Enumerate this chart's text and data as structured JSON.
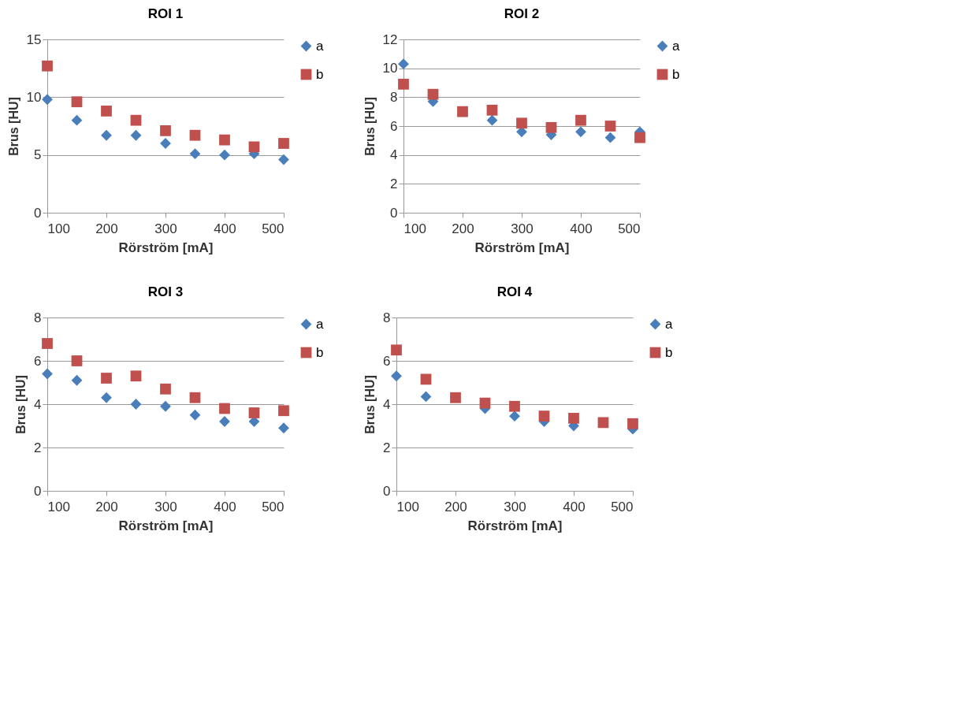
{
  "chart_data": [
    {
      "type": "scatter",
      "title": "ROI 1",
      "xlabel": "Rörström [mA]",
      "ylabel": "Brus [HU]",
      "x": [
        100,
        150,
        200,
        250,
        300,
        350,
        400,
        450,
        500
      ],
      "xlim": [
        100,
        500
      ],
      "xticks": [
        100,
        200,
        300,
        400,
        500
      ],
      "ylim": [
        0,
        15
      ],
      "yticks": [
        0,
        5,
        10,
        15
      ],
      "grid": "y",
      "legend": "right",
      "series": [
        {
          "name": "a",
          "color": "#4a7ebb",
          "marker": "diamond",
          "values": [
            9.8,
            8.0,
            6.7,
            6.7,
            6.0,
            5.1,
            5.0,
            5.1,
            4.6
          ]
        },
        {
          "name": "b",
          "color": "#c0504d",
          "marker": "square",
          "values": [
            12.7,
            9.6,
            8.8,
            8.0,
            7.1,
            6.7,
            6.3,
            5.7,
            6.0
          ]
        }
      ]
    },
    {
      "type": "scatter",
      "title": "ROI 2",
      "xlabel": "Rörström [mA]",
      "ylabel": "Brus [HU]",
      "x": [
        100,
        150,
        200,
        250,
        300,
        350,
        400,
        450,
        500
      ],
      "xlim": [
        100,
        500
      ],
      "xticks": [
        100,
        200,
        300,
        400,
        500
      ],
      "ylim": [
        0,
        12
      ],
      "yticks": [
        0,
        2,
        4,
        6,
        8,
        10,
        12
      ],
      "grid": "y",
      "legend": "right",
      "series": [
        {
          "name": "a",
          "color": "#4a7ebb",
          "marker": "diamond",
          "values": [
            10.3,
            7.7,
            null,
            6.4,
            5.6,
            5.4,
            5.6,
            5.2,
            5.6
          ]
        },
        {
          "name": "b",
          "color": "#c0504d",
          "marker": "square",
          "values": [
            8.9,
            8.2,
            7.0,
            7.1,
            6.2,
            5.9,
            6.4,
            6.0,
            5.2
          ]
        }
      ]
    },
    {
      "type": "scatter",
      "title": "ROI 3",
      "xlabel": "Rörström [mA]",
      "ylabel": "Brus [HU]",
      "x": [
        100,
        150,
        200,
        250,
        300,
        350,
        400,
        450,
        500
      ],
      "xlim": [
        100,
        500
      ],
      "xticks": [
        100,
        200,
        300,
        400,
        500
      ],
      "ylim": [
        0,
        8
      ],
      "yticks": [
        0,
        2,
        4,
        6,
        8
      ],
      "grid": "y",
      "legend": "right",
      "series": [
        {
          "name": "a",
          "color": "#4a7ebb",
          "marker": "diamond",
          "values": [
            5.4,
            5.1,
            4.3,
            4.0,
            3.9,
            3.5,
            3.2,
            3.2,
            2.9
          ]
        },
        {
          "name": "b",
          "color": "#c0504d",
          "marker": "square",
          "values": [
            6.8,
            6.0,
            5.2,
            5.3,
            4.7,
            4.3,
            3.8,
            3.6,
            3.7
          ]
        }
      ]
    },
    {
      "type": "scatter",
      "title": "ROI 4",
      "xlabel": "Rörström [mA]",
      "ylabel": "Brus [HU]",
      "x": [
        100,
        150,
        200,
        250,
        300,
        350,
        400,
        450,
        500
      ],
      "xlim": [
        100,
        500
      ],
      "xticks": [
        100,
        200,
        300,
        400,
        500
      ],
      "ylim": [
        0,
        8
      ],
      "yticks": [
        0,
        2,
        4,
        6,
        8
      ],
      "grid": "y",
      "legend": "right",
      "series": [
        {
          "name": "a",
          "color": "#4a7ebb",
          "marker": "diamond",
          "values": [
            5.3,
            4.35,
            null,
            3.8,
            3.45,
            3.2,
            3.0,
            null,
            2.85
          ]
        },
        {
          "name": "b",
          "color": "#c0504d",
          "marker": "square",
          "values": [
            6.5,
            5.15,
            4.3,
            4.05,
            3.9,
            3.45,
            3.35,
            3.15,
            3.1
          ]
        }
      ]
    }
  ]
}
